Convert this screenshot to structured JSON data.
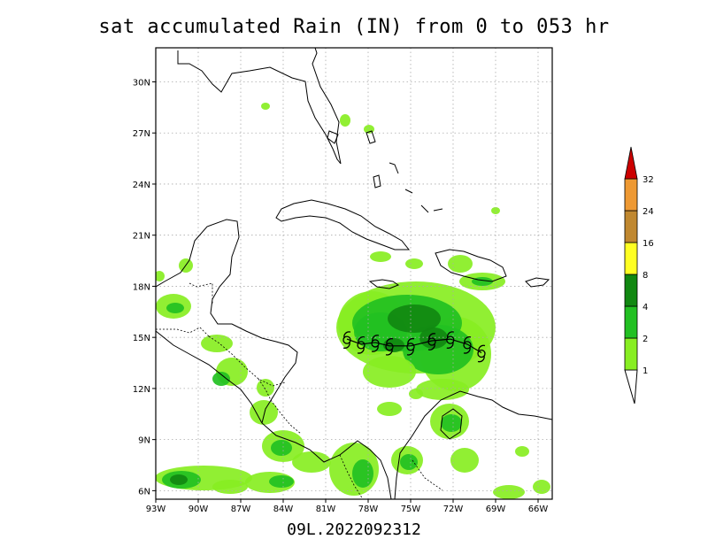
{
  "title": "sat accumulated Rain (IN) from 0 to 053 hr",
  "footer": "09L.2022092312",
  "map": {
    "lon_range": [
      -93,
      -65
    ],
    "lat_range": [
      5.5,
      32
    ],
    "lat_ticks": [
      {
        "value": 30,
        "label": "30N"
      },
      {
        "value": 27,
        "label": "27N"
      },
      {
        "value": 24,
        "label": "24N"
      },
      {
        "value": 21,
        "label": "21N"
      },
      {
        "value": 18,
        "label": "18N"
      },
      {
        "value": 15,
        "label": "15N"
      },
      {
        "value": 12,
        "label": "12N"
      },
      {
        "value": 9,
        "label": "9N"
      },
      {
        "value": 6,
        "label": "6N"
      }
    ],
    "lon_ticks": [
      {
        "value": -93,
        "label": "93W"
      },
      {
        "value": -90,
        "label": "90W"
      },
      {
        "value": -87,
        "label": "87W"
      },
      {
        "value": -84,
        "label": "84W"
      },
      {
        "value": -81,
        "label": "81W"
      },
      {
        "value": -78,
        "label": "78W"
      },
      {
        "value": -75,
        "label": "75W"
      },
      {
        "value": -72,
        "label": "72W"
      },
      {
        "value": -69,
        "label": "69W"
      },
      {
        "value": -66,
        "label": "66W"
      }
    ],
    "grid": "dotted",
    "storm_track": [
      [
        -79.5,
        14.9
      ],
      [
        -78.5,
        14.6
      ],
      [
        -77.5,
        14.7
      ],
      [
        -76.5,
        14.5
      ],
      [
        -75.0,
        14.5
      ],
      [
        -73.5,
        14.8
      ],
      [
        -72.2,
        14.9
      ],
      [
        -71.0,
        14.6
      ],
      [
        -70.0,
        14.1
      ]
    ]
  },
  "legend": {
    "levels": [
      {
        "label": "1",
        "color": "#88ee22"
      },
      {
        "label": "2",
        "color": "#22c022"
      },
      {
        "label": "4",
        "color": "#118811"
      },
      {
        "label": "8",
        "color": "#ffff22"
      },
      {
        "label": "16",
        "color": "#c08830"
      },
      {
        "label": "24",
        "color": "#ee9933"
      },
      {
        "label": "32",
        "color": "#cc0000"
      }
    ]
  },
  "colors": {
    "light_green": "#88ee22",
    "mid_green": "#22c022",
    "dark_green": "#118811"
  }
}
